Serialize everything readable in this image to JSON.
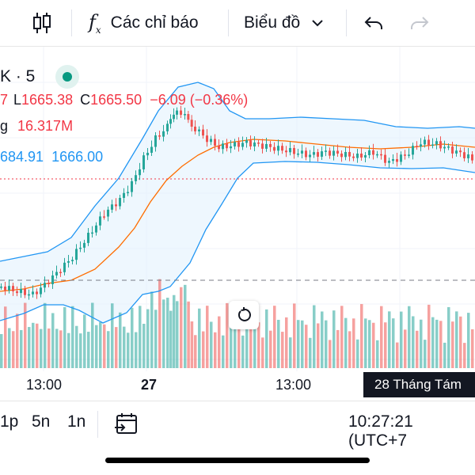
{
  "toolbar": {
    "indicators_label": "Các chỉ báo",
    "chart_type_label": "Biểu đồ"
  },
  "legend": {
    "symbol_fragment": "K · 5",
    "ohlc_prefix": "7",
    "low_label": "L",
    "low_value": "1665.38",
    "close_label": "C",
    "close_value": "1665.50",
    "change": "−6.09 (−0.36%)",
    "volume_fragment": "g",
    "volume_value": "16.317M",
    "bb_fragment": "684.91",
    "bb_value": "1666.00"
  },
  "xaxis": {
    "labels": [
      "13:00",
      "27",
      "13:00"
    ],
    "badge": "28 Tháng Tám"
  },
  "timeframes": [
    "1p",
    "5n",
    "1n"
  ],
  "clock": "10:27:21 (UTC+7",
  "colors": {
    "up": "#26a69a",
    "down": "#ef5350",
    "bb_band": "#2196f3",
    "bb_basis": "#ff6d00"
  }
}
